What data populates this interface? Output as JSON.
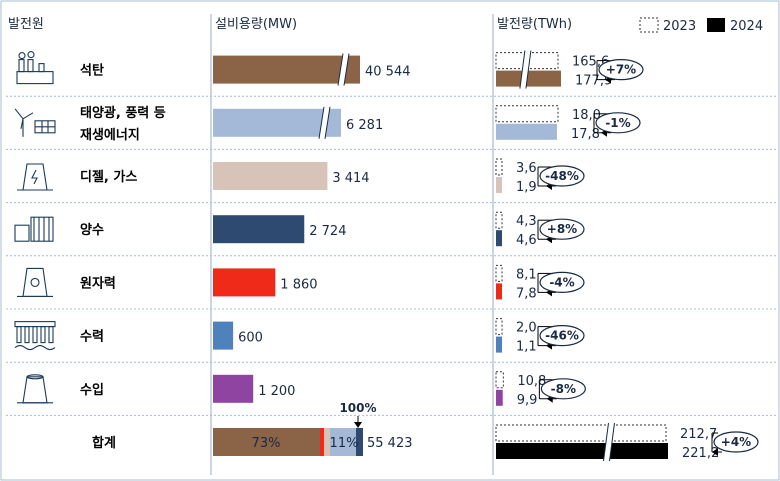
{
  "headers": {
    "source": "발전원",
    "capacity": "설비용량(MW)",
    "generation": "발전량(TWh)"
  },
  "legend": [
    {
      "name": "2023",
      "style": "dashed"
    },
    {
      "name": "2024",
      "style": "solid"
    }
  ],
  "colors": {
    "coal": "#8b6347",
    "renewable": "#a4b8d8",
    "diesel_gas": "#d8c3b8",
    "pumped": "#2e4a70",
    "nuclear": "#f02a18",
    "hydro": "#4f81bd",
    "import": "#8e44a0",
    "total": "#000000",
    "divider": "#a6bcd4"
  },
  "chart_data": {
    "type": "bar",
    "categories": [
      "석탄",
      "태양광, 풍력 등 재생에너지",
      "디젤, 가스",
      "양수",
      "원자력",
      "수력",
      "수입",
      "합계"
    ],
    "category_lines": [
      [
        "석탄"
      ],
      [
        "태양광, 풍력 등",
        "재생에너지"
      ],
      [
        "디젤, 가스"
      ],
      [
        "양수"
      ],
      [
        "원자력"
      ],
      [
        "수력"
      ],
      [
        "수입"
      ],
      [
        "합계"
      ]
    ],
    "icons": [
      "factory-icon",
      "wind-solar-icon",
      "power-plant-icon",
      "dam-icon",
      "nuclear-plant-icon",
      "hydro-dam-icon",
      "transmission-icon",
      ""
    ],
    "capacity": {
      "values": [
        40544,
        6281,
        3414,
        2724,
        1860,
        600,
        1200,
        55423
      ],
      "labels": [
        "40 544",
        "6 281",
        "3 414",
        "2 724",
        "1 860",
        "600",
        "1 200",
        "55 423"
      ],
      "axis_break": [
        true,
        true,
        false,
        false,
        false,
        false,
        false,
        false
      ],
      "total_share_labels": [
        "73%",
        "11%"
      ],
      "total_share_marker": "100%"
    },
    "generation": {
      "series": [
        {
          "name": "2023",
          "values": [
            165.6,
            18.0,
            3.6,
            4.3,
            8.1,
            2.0,
            10.8,
            212.7
          ],
          "labels": [
            "165,6",
            "18,0",
            "3,6",
            "4,3",
            "8,1",
            "2,0",
            "10,8",
            "212,7"
          ]
        },
        {
          "name": "2024",
          "values": [
            177.9,
            17.8,
            1.9,
            4.6,
            7.8,
            1.1,
            9.9,
            221.2
          ],
          "labels": [
            "177,9",
            "17,8",
            "1,9",
            "4,6",
            "7,8",
            "1,1",
            "9,9",
            "221,2"
          ]
        }
      ],
      "change": [
        "+7%",
        "-1%",
        "-48%",
        "+8%",
        "-4%",
        "-46%",
        "-8%",
        "+4%"
      ],
      "axis_break": [
        true,
        false,
        false,
        false,
        false,
        false,
        false,
        true
      ]
    }
  }
}
